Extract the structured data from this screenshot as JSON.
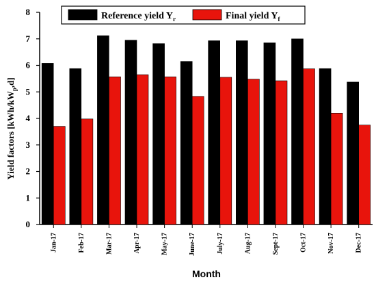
{
  "chart_data": {
    "type": "bar",
    "categories": [
      "Jan-17",
      "Feb-17",
      "Mar-17",
      "Apr-17",
      "May-17",
      "June-17",
      "July-17",
      "Aug-17",
      "Sept-17",
      "Oct-17",
      "Nov-17",
      "Dec-17"
    ],
    "series": [
      {
        "name": "Reference yield Y",
        "subscript": "r",
        "color": "#000000",
        "values": [
          6.08,
          5.88,
          7.12,
          6.95,
          6.82,
          6.15,
          6.93,
          6.93,
          6.85,
          7.0,
          5.88,
          5.37
        ]
      },
      {
        "name": "Final yield Y",
        "subscript": "f",
        "color": "#e8140c",
        "values": [
          3.7,
          3.98,
          5.57,
          5.65,
          5.57,
          4.83,
          5.55,
          5.48,
          5.42,
          5.87,
          4.2,
          3.75
        ]
      }
    ],
    "xlabel": "Month",
    "ylabel": "Yield factors [kWh/kW",
    "ylabel_sub": "p",
    "ylabel_tail": ",d]",
    "ylim": [
      0,
      8
    ],
    "yticks": [
      "0",
      "1",
      "2",
      "3",
      "4",
      "5",
      "6",
      "7",
      "8"
    ],
    "legend_position": "top",
    "grid": false
  }
}
